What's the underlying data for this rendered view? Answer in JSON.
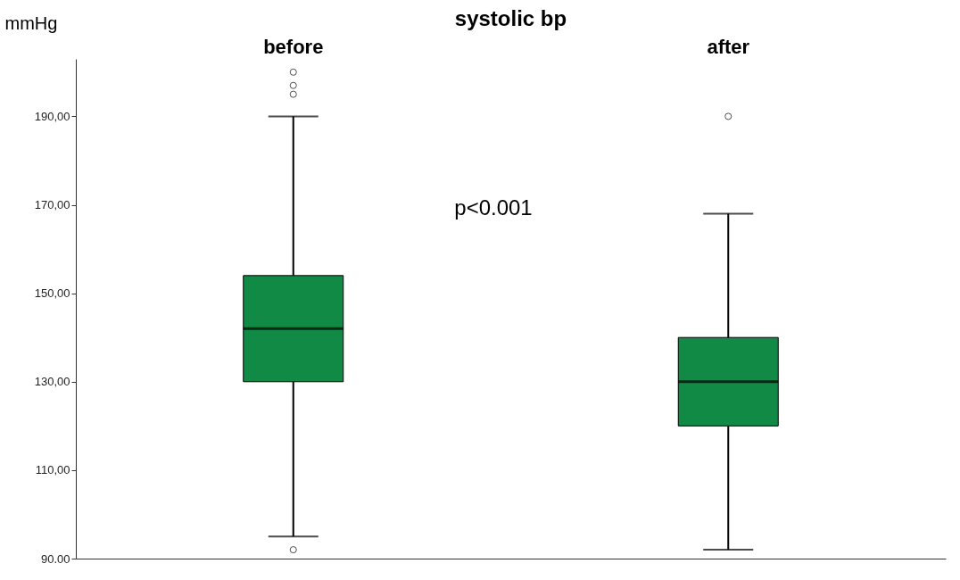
{
  "chart_data": {
    "type": "box",
    "title": "systolic bp",
    "ylabel": "mmHg",
    "categories": [
      "before",
      "after"
    ],
    "boxes": [
      {
        "low": 95,
        "q1": 130,
        "median": 142,
        "q3": 154,
        "high": 190,
        "outliers": [
          195,
          197,
          200,
          92
        ]
      },
      {
        "low": 92,
        "q1": 120,
        "median": 130,
        "q3": 140,
        "high": 168,
        "outliers": [
          190
        ]
      }
    ],
    "color": "#118a45",
    "ylim": [
      90,
      203
    ],
    "yticks": [
      {
        "value": 90,
        "label": "90.00"
      },
      {
        "value": 110,
        "label": "110,00"
      },
      {
        "value": 130,
        "label": "130,00"
      },
      {
        "value": 150,
        "label": "150,00"
      },
      {
        "value": 170,
        "label": "170,00"
      },
      {
        "value": 190,
        "label": "190,00"
      }
    ],
    "annotations": [
      "p<0.001"
    ],
    "grid": false
  }
}
